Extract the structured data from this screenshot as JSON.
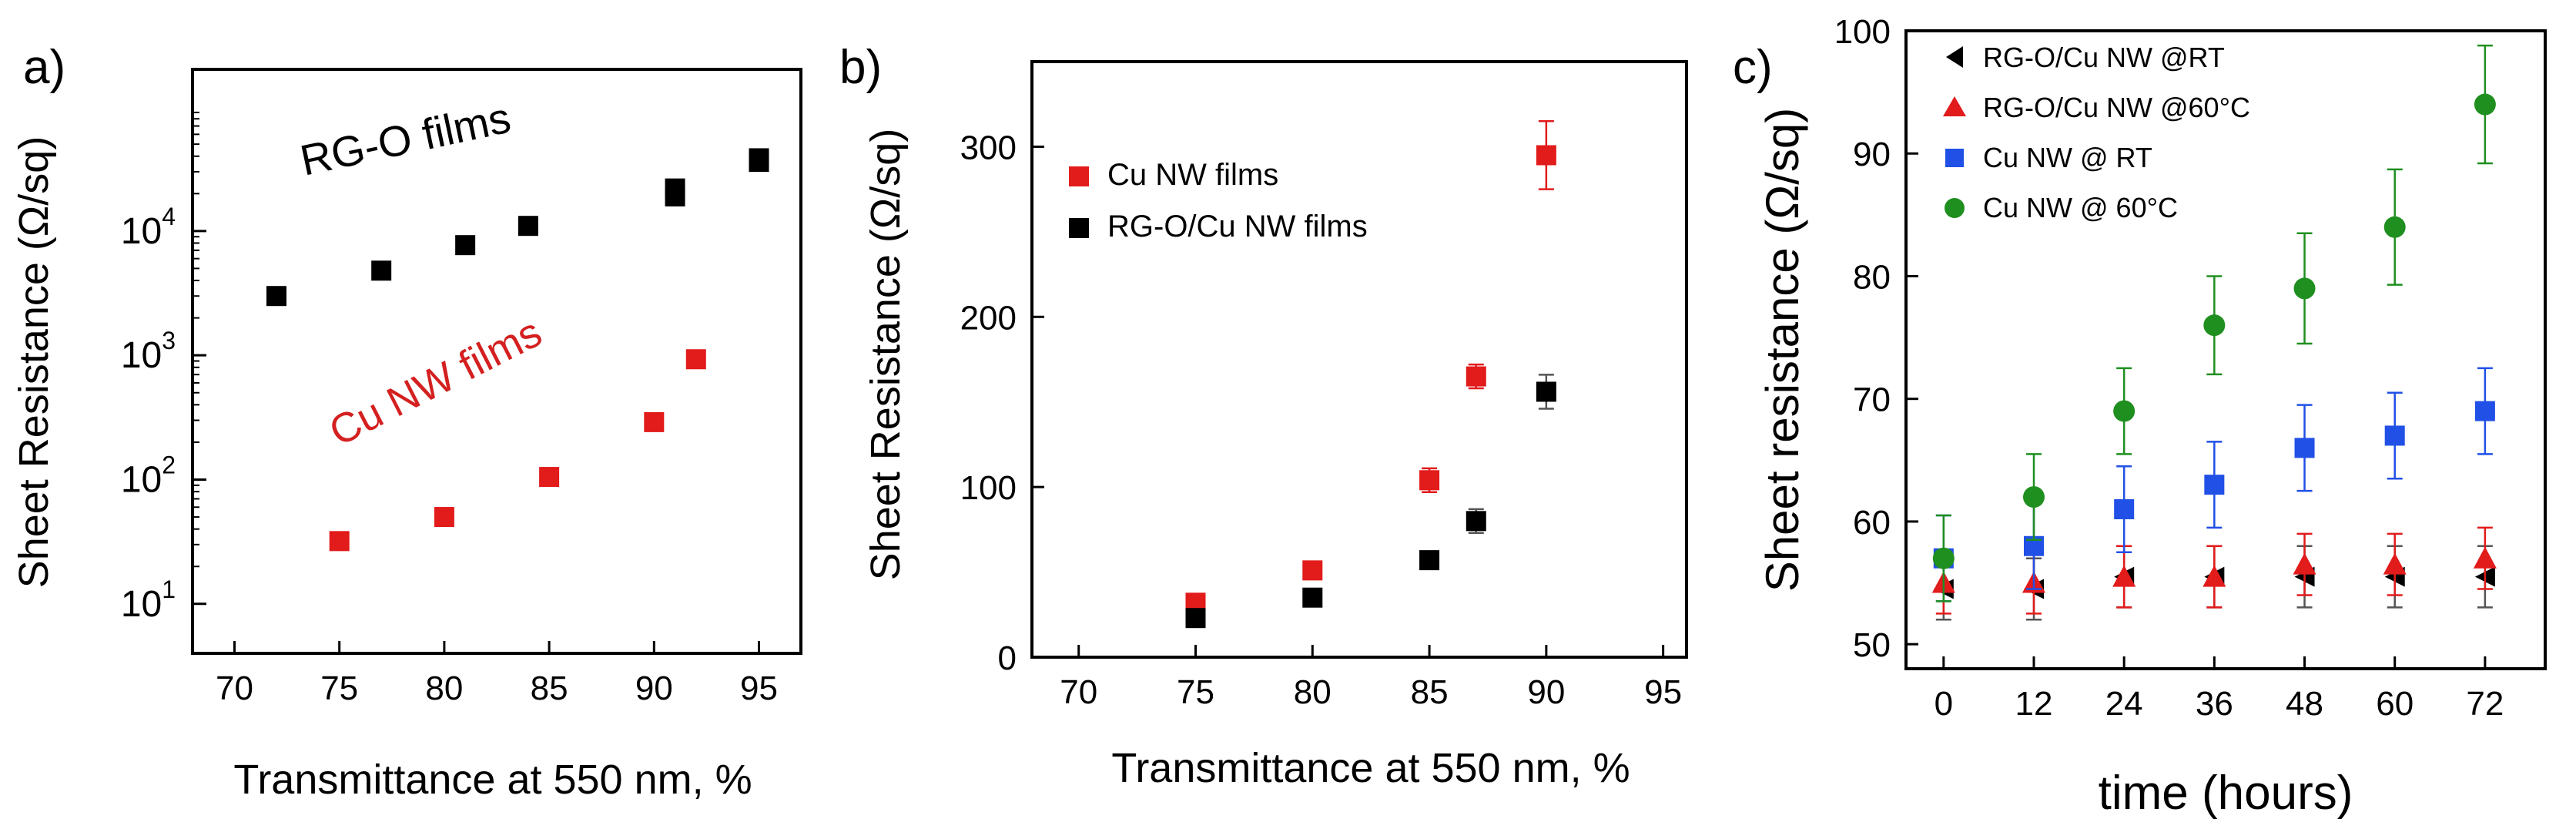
{
  "chart_data": [
    {
      "panel_label": "a)",
      "type": "scatter",
      "yscale": "log",
      "xlabel": "Transmittance at 550 nm, %",
      "ylabel": "Sheet Resistance (Ω/sq)",
      "xlim": [
        68,
        97
      ],
      "ylim": [
        4,
        200000
      ],
      "xticks": [
        70,
        75,
        80,
        85,
        90,
        95
      ],
      "yticks": [
        {
          "v": 10,
          "mant": "10",
          "exp": "1"
        },
        {
          "v": 100,
          "mant": "10",
          "exp": "2"
        },
        {
          "v": 1000,
          "mant": "10",
          "exp": "3"
        },
        {
          "v": 10000,
          "mant": "10",
          "exp": "4"
        }
      ],
      "series": [
        {
          "name": "RG-O films",
          "color": "#000000",
          "x": [
            72,
            77,
            81,
            84,
            91,
            91,
            95,
            95
          ],
          "y": [
            3000,
            4800,
            7700,
            11000,
            19000,
            22000,
            36000,
            38500
          ]
        },
        {
          "name": "Cu NW films",
          "color": "#e21b1b",
          "x": [
            75,
            80,
            85,
            90,
            92
          ],
          "y": [
            32,
            50,
            105,
            290,
            930
          ]
        }
      ],
      "annotations": [
        {
          "text": "RG-O films",
          "color": "#000000"
        },
        {
          "text": "Cu NW films",
          "color": "#d42020"
        }
      ]
    },
    {
      "panel_label": "b)",
      "type": "scatter",
      "xlabel": "Transmittance at 550 nm, %",
      "ylabel": "Sheet Resistance (Ω/sq)",
      "xlim": [
        68,
        96
      ],
      "ylim": [
        0,
        350
      ],
      "xticks": [
        70,
        75,
        80,
        85,
        90,
        95
      ],
      "yticks": [
        0,
        100,
        200,
        300
      ],
      "series": [
        {
          "name": "Cu NW films",
          "color": "#e21b1b",
          "x": [
            75,
            80,
            85,
            87,
            90
          ],
          "y": [
            32,
            51,
            104,
            165,
            295
          ],
          "err": [
            0,
            0,
            7,
            7,
            20
          ]
        },
        {
          "name": "RG-O/Cu NW films",
          "color": "#000000",
          "x": [
            75,
            80,
            85,
            87,
            90
          ],
          "y": [
            23,
            35,
            57,
            80,
            156
          ],
          "err": [
            0,
            0,
            4,
            7,
            10
          ]
        }
      ]
    },
    {
      "panel_label": "c)",
      "type": "scatter",
      "xlabel": "time (hours)",
      "ylabel": "Sheet resistance (Ω/sq)",
      "xlim": [
        -5,
        80
      ],
      "ylim": [
        48,
        100
      ],
      "xticks": [
        0,
        12,
        24,
        36,
        48,
        60,
        72
      ],
      "yticks": [
        50,
        60,
        70,
        80,
        90,
        100
      ],
      "series": [
        {
          "name": "RG-O/Cu NW @RT",
          "color": "#000000",
          "marker": "triangle-left",
          "x": [
            0,
            12,
            24,
            36,
            48,
            60,
            72
          ],
          "y": [
            54.5,
            54.5,
            55.5,
            55.5,
            55.5,
            55.5,
            55.5
          ],
          "err": [
            2.5,
            2.5,
            2.5,
            2.5,
            2.5,
            2.5,
            2.5
          ]
        },
        {
          "name": "RG-O/Cu NW @60°C",
          "color": "#e21b1b",
          "marker": "triangle-up",
          "x": [
            0,
            12,
            24,
            36,
            48,
            60,
            72
          ],
          "y": [
            55,
            55,
            55.5,
            55.5,
            56.5,
            56.5,
            57
          ],
          "err": [
            2.5,
            2.5,
            2.5,
            2.5,
            2.5,
            2.5,
            2.5
          ]
        },
        {
          "name": "Cu NW @ RT",
          "color": "#2050e6",
          "marker": "square",
          "x": [
            0,
            12,
            24,
            36,
            48,
            60,
            72
          ],
          "y": [
            57,
            58,
            61,
            63,
            66,
            67,
            69
          ],
          "err": [
            3.5,
            3.5,
            3.5,
            3.5,
            3.5,
            3.5,
            3.5
          ]
        },
        {
          "name": "Cu NW @ 60°C",
          "color": "#1f8f1f",
          "marker": "circle",
          "x": [
            0,
            12,
            24,
            36,
            48,
            60,
            72
          ],
          "y": [
            57,
            62,
            69,
            76,
            79,
            84,
            94
          ],
          "err": [
            3.5,
            3.5,
            3.5,
            4.0,
            4.5,
            4.7,
            4.8
          ]
        }
      ]
    }
  ]
}
